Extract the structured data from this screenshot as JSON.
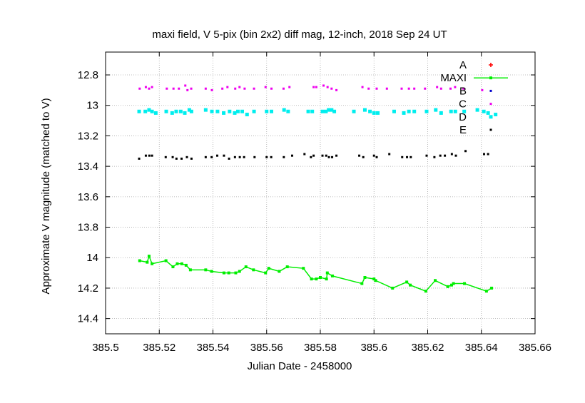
{
  "chart_data": {
    "type": "scatter",
    "title": "maxi field, V 5-pix (bin 2x2) diff mag, 12-inch, 2018 Sep 24 UT",
    "xlabel": "Julian Date - 2458000",
    "ylabel": "Approximate V magnitude (matched to V)",
    "xlim": [
      385.5,
      385.66
    ],
    "ylim": [
      14.5,
      12.65
    ],
    "y_inverted": true,
    "grid": true,
    "legend_position": "top-right",
    "x_ticks": [
      {
        "v": 385.5,
        "label": "385.5"
      },
      {
        "v": 385.52,
        "label": "385.52"
      },
      {
        "v": 385.54,
        "label": "385.54"
      },
      {
        "v": 385.56,
        "label": "385.56"
      },
      {
        "v": 385.58,
        "label": "385.58"
      },
      {
        "v": 385.6,
        "label": "385.6"
      },
      {
        "v": 385.62,
        "label": "385.62"
      },
      {
        "v": 385.64,
        "label": "385.64"
      },
      {
        "v": 385.66,
        "label": "385.66"
      }
    ],
    "y_ticks": [
      {
        "v": 12.8,
        "label": "12.8"
      },
      {
        "v": 13.0,
        "label": "13"
      },
      {
        "v": 13.2,
        "label": "13.2"
      },
      {
        "v": 13.4,
        "label": "13.4"
      },
      {
        "v": 13.6,
        "label": "13.6"
      },
      {
        "v": 13.8,
        "label": "13.8"
      },
      {
        "v": 14.0,
        "label": "14"
      },
      {
        "v": 14.2,
        "label": "14.2"
      },
      {
        "v": 14.4,
        "label": "14.4"
      }
    ],
    "series": [
      {
        "name": "A",
        "color": "#ff0000",
        "marker": "plus",
        "x": [],
        "y": []
      },
      {
        "name": "MAXI",
        "color": "#00ee00",
        "marker": "line-square",
        "x": [
          385.5127,
          385.5155,
          385.5162,
          385.5173,
          385.5225,
          385.5251,
          385.5267,
          385.5284,
          385.53,
          385.5316,
          385.5373,
          385.5395,
          385.5441,
          385.5459,
          385.5485,
          385.5499,
          385.5523,
          385.5551,
          385.5596,
          385.5608,
          385.5647,
          385.5677,
          385.5737,
          385.5767,
          385.5785,
          385.58,
          385.5823,
          385.5826,
          385.5845,
          385.5955,
          385.5966,
          385.6,
          385.6006,
          385.6069,
          385.6122,
          385.6135,
          385.6193,
          385.6228,
          385.6275,
          385.6289,
          385.6296,
          385.6337,
          385.6419,
          385.6438
        ],
        "y": [
          14.02,
          14.03,
          13.99,
          14.04,
          14.02,
          14.06,
          14.04,
          14.04,
          14.05,
          14.08,
          14.08,
          14.09,
          14.1,
          14.1,
          14.1,
          14.09,
          14.06,
          14.08,
          14.1,
          14.07,
          14.09,
          14.06,
          14.07,
          14.14,
          14.14,
          14.13,
          14.14,
          14.1,
          14.12,
          14.17,
          14.13,
          14.14,
          14.15,
          14.2,
          14.16,
          14.18,
          14.22,
          14.15,
          14.19,
          14.18,
          14.17,
          14.17,
          14.22,
          14.2
        ]
      },
      {
        "name": "B",
        "color": "#0000cc",
        "marker": "dot",
        "x": [],
        "y": []
      },
      {
        "name": "C",
        "color": "#ee00ee",
        "marker": "dot",
        "x": [
          385.5127,
          385.515,
          385.5162,
          385.5173,
          385.5228,
          385.5253,
          385.5273,
          385.5297,
          385.5305,
          385.5319,
          385.5373,
          385.5396,
          385.5435,
          385.5454,
          385.5483,
          385.5499,
          385.5518,
          385.5553,
          385.5596,
          385.5618,
          385.5663,
          385.5685,
          385.5775,
          385.5785,
          385.5812,
          385.5827,
          385.5842,
          385.586,
          385.5957,
          385.598,
          385.601,
          385.6048,
          385.6103,
          385.613,
          385.615,
          385.619,
          385.6235,
          385.625,
          385.6285,
          385.6302,
          385.6333,
          385.6403
        ],
        "y": [
          12.89,
          12.88,
          12.89,
          12.88,
          12.89,
          12.89,
          12.89,
          12.87,
          12.9,
          12.89,
          12.89,
          12.9,
          12.89,
          12.88,
          12.89,
          12.88,
          12.89,
          12.89,
          12.88,
          12.89,
          12.89,
          12.88,
          12.88,
          12.88,
          12.87,
          12.88,
          12.89,
          12.9,
          12.88,
          12.89,
          12.89,
          12.89,
          12.89,
          12.89,
          12.89,
          12.89,
          12.88,
          12.89,
          12.89,
          12.88,
          12.89,
          12.9
        ]
      },
      {
        "name": "D",
        "color": "#00eeee",
        "marker": "square",
        "x": [
          385.5125,
          385.5148,
          385.5162,
          385.5173,
          385.5187,
          385.5226,
          385.5248,
          385.5263,
          385.528,
          385.5295,
          385.5312,
          385.532,
          385.5373,
          385.5396,
          385.5417,
          385.544,
          385.5462,
          385.5481,
          385.5493,
          385.5509,
          385.5527,
          385.5553,
          385.56,
          385.5618,
          385.5665,
          385.568,
          385.5755,
          385.577,
          385.5808,
          385.5821,
          385.5831,
          385.5842,
          385.5852,
          385.5925,
          385.5966,
          385.5985,
          385.6,
          385.6014,
          385.6075,
          385.6111,
          385.613,
          385.615,
          385.6196,
          385.623,
          385.625,
          385.6287,
          385.6303,
          385.6336,
          385.6385,
          385.6409,
          385.6425,
          385.6453
        ],
        "y": [
          13.04,
          13.04,
          13.03,
          13.04,
          13.05,
          13.04,
          13.05,
          13.04,
          13.04,
          13.05,
          13.03,
          13.04,
          13.03,
          13.04,
          13.04,
          13.05,
          13.04,
          13.05,
          13.04,
          13.04,
          13.06,
          13.04,
          13.04,
          13.04,
          13.03,
          13.04,
          13.04,
          13.04,
          13.04,
          13.04,
          13.03,
          13.03,
          13.04,
          13.04,
          13.03,
          13.04,
          13.05,
          13.05,
          13.04,
          13.05,
          13.04,
          13.04,
          13.04,
          13.03,
          13.05,
          13.04,
          13.04,
          13.04,
          13.03,
          13.04,
          13.05,
          13.06
        ]
      },
      {
        "name": "E",
        "color": "#000000",
        "marker": "dot",
        "x": [
          385.5125,
          385.515,
          385.5163,
          385.5173,
          385.5224,
          385.525,
          385.5264,
          385.5283,
          385.5303,
          385.532,
          385.5373,
          385.5395,
          385.5416,
          385.5441,
          385.546,
          385.5482,
          385.55,
          385.5516,
          385.5555,
          385.56,
          385.5617,
          385.5664,
          385.5695,
          385.5741,
          385.5765,
          385.5775,
          385.5808,
          385.5822,
          385.5832,
          385.5844,
          385.586,
          385.5945,
          385.596,
          385.6,
          385.601,
          385.6057,
          385.6105,
          385.6123,
          385.6137,
          385.6196,
          385.6225,
          385.6247,
          385.6264,
          385.629,
          385.6305,
          385.6341,
          385.641,
          385.6425
        ],
        "y": [
          13.35,
          13.33,
          13.33,
          13.33,
          13.34,
          13.34,
          13.35,
          13.35,
          13.34,
          13.35,
          13.34,
          13.34,
          13.33,
          13.33,
          13.35,
          13.34,
          13.34,
          13.34,
          13.34,
          13.34,
          13.34,
          13.34,
          13.33,
          13.32,
          13.34,
          13.33,
          13.33,
          13.33,
          13.34,
          13.34,
          13.33,
          13.33,
          13.34,
          13.33,
          13.34,
          13.32,
          13.34,
          13.34,
          13.34,
          13.33,
          13.34,
          13.33,
          13.33,
          13.32,
          13.33,
          13.3,
          13.32,
          13.32
        ]
      }
    ]
  }
}
